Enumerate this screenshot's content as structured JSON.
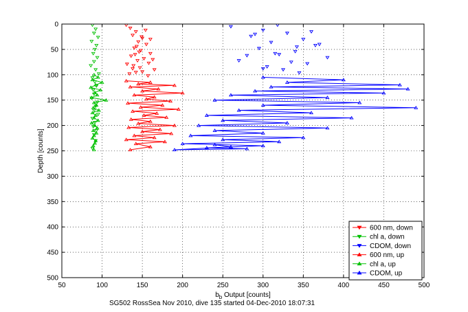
{
  "chart_data": {
    "type": "line",
    "xlabel_main": "b",
    "xlabel_sub": "b",
    "xlabel_rest": " Output [counts]",
    "ylabel": "Depth [counts]",
    "caption": "SG502 RossSea Nov 2010, dive 135 started 04-Dec-2010 18:07:31",
    "xlim": [
      50,
      500
    ],
    "ylim": [
      0,
      500
    ],
    "y_reversed": true,
    "grid": true,
    "legend_position": "bottom-right",
    "xticks": [
      50,
      100,
      150,
      200,
      250,
      300,
      350,
      400,
      450,
      500
    ],
    "yticks": [
      0,
      50,
      100,
      150,
      200,
      250,
      300,
      350,
      400,
      450,
      500
    ],
    "series": [
      {
        "name": "600 nm, down",
        "color": "#ff0000",
        "marker": "triangle-down",
        "connected": false,
        "x": [
          130,
          135,
          142,
          138,
          150,
          145,
          155,
          140,
          148,
          160,
          136,
          152,
          144,
          158,
          139,
          147,
          165,
          150,
          134,
          157,
          141,
          149,
          143,
          163,
          138,
          154,
          146,
          131,
          160,
          142
        ],
        "y": [
          2,
          8,
          15,
          22,
          28,
          35,
          40,
          47,
          52,
          58,
          63,
          68,
          72,
          77,
          82,
          86,
          90,
          94,
          98,
          102,
          60,
          25,
          44,
          70,
          88,
          12,
          55,
          79,
          30,
          95
        ]
      },
      {
        "name": "chl a, down",
        "color": "#00c000",
        "marker": "triangle-down",
        "connected": false,
        "x": [
          88,
          92,
          90,
          95,
          87,
          93,
          91,
          89,
          94,
          90,
          86,
          92,
          96,
          88,
          91,
          93,
          89,
          90,
          87,
          94,
          92,
          90,
          95,
          88,
          91,
          89,
          93,
          90,
          92,
          88
        ],
        "y": [
          2,
          10,
          18,
          26,
          34,
          42,
          50,
          58,
          66,
          74,
          82,
          90,
          98,
          106,
          114,
          122,
          130,
          138,
          146,
          154,
          162,
          170,
          178,
          186,
          194,
          202,
          210,
          218,
          230,
          245
        ]
      },
      {
        "name": "CDOM, down",
        "color": "#0000ff",
        "marker": "triangle-down",
        "connected": false,
        "x": [
          260,
          300,
          330,
          285,
          350,
          310,
          365,
          295,
          340,
          320,
          380,
          270,
          355,
          305,
          325,
          345,
          290,
          370,
          315,
          335,
          300,
          360,
          280,
          342,
          318
        ],
        "y": [
          5,
          12,
          18,
          24,
          30,
          36,
          42,
          48,
          54,
          60,
          66,
          72,
          78,
          84,
          90,
          96,
          20,
          40,
          58,
          75,
          88,
          15,
          62,
          45,
          2
        ]
      },
      {
        "name": "600 nm, up",
        "color": "#ff0000",
        "marker": "triangle-up",
        "connected": true,
        "x": [
          130,
          160,
          145,
          190,
          135,
          170,
          150,
          200,
          140,
          165,
          155,
          185,
          132,
          175,
          148,
          195,
          138,
          168,
          152,
          180,
          136,
          160,
          145,
          190,
          133,
          172,
          150,
          186,
          140,
          165,
          130,
          178,
          142,
          160,
          135
        ],
        "y": [
          112,
          115,
          118,
          121,
          124,
          128,
          132,
          136,
          140,
          144,
          148,
          152,
          156,
          160,
          164,
          168,
          172,
          176,
          180,
          184,
          188,
          192,
          196,
          200,
          204,
          208,
          212,
          216,
          220,
          224,
          228,
          232,
          236,
          242,
          248
        ]
      },
      {
        "name": "chl a, up",
        "color": "#00c000",
        "marker": "triangle-up",
        "connected": true,
        "x": [
          90,
          95,
          88,
          100,
          92,
          86,
          98,
          91,
          94,
          87,
          105,
          90,
          93,
          89,
          96,
          88,
          92,
          90,
          95,
          87,
          91,
          94,
          89,
          93,
          90,
          88,
          92,
          91,
          89,
          90
        ],
        "y": [
          100,
          105,
          110,
          115,
          120,
          125,
          130,
          135,
          140,
          145,
          150,
          155,
          160,
          165,
          170,
          175,
          180,
          185,
          190,
          195,
          200,
          205,
          210,
          215,
          220,
          225,
          230,
          235,
          240,
          248
        ]
      },
      {
        "name": "CDOM, up",
        "color": "#0000ff",
        "marker": "triangle-up",
        "connected": true,
        "x": [
          300,
          400,
          330,
          470,
          310,
          480,
          290,
          450,
          260,
          380,
          240,
          420,
          300,
          490,
          270,
          360,
          230,
          410,
          250,
          330,
          220,
          380,
          240,
          300,
          210,
          350,
          250,
          320,
          200,
          300,
          230,
          280,
          190,
          260,
          240
        ],
        "y": [
          105,
          110,
          115,
          120,
          124,
          128,
          132,
          136,
          140,
          145,
          150,
          155,
          160,
          165,
          170,
          175,
          180,
          185,
          190,
          195,
          200,
          205,
          210,
          215,
          220,
          224,
          228,
          232,
          236,
          240,
          244,
          246,
          248,
          242,
          238
        ]
      }
    ]
  }
}
